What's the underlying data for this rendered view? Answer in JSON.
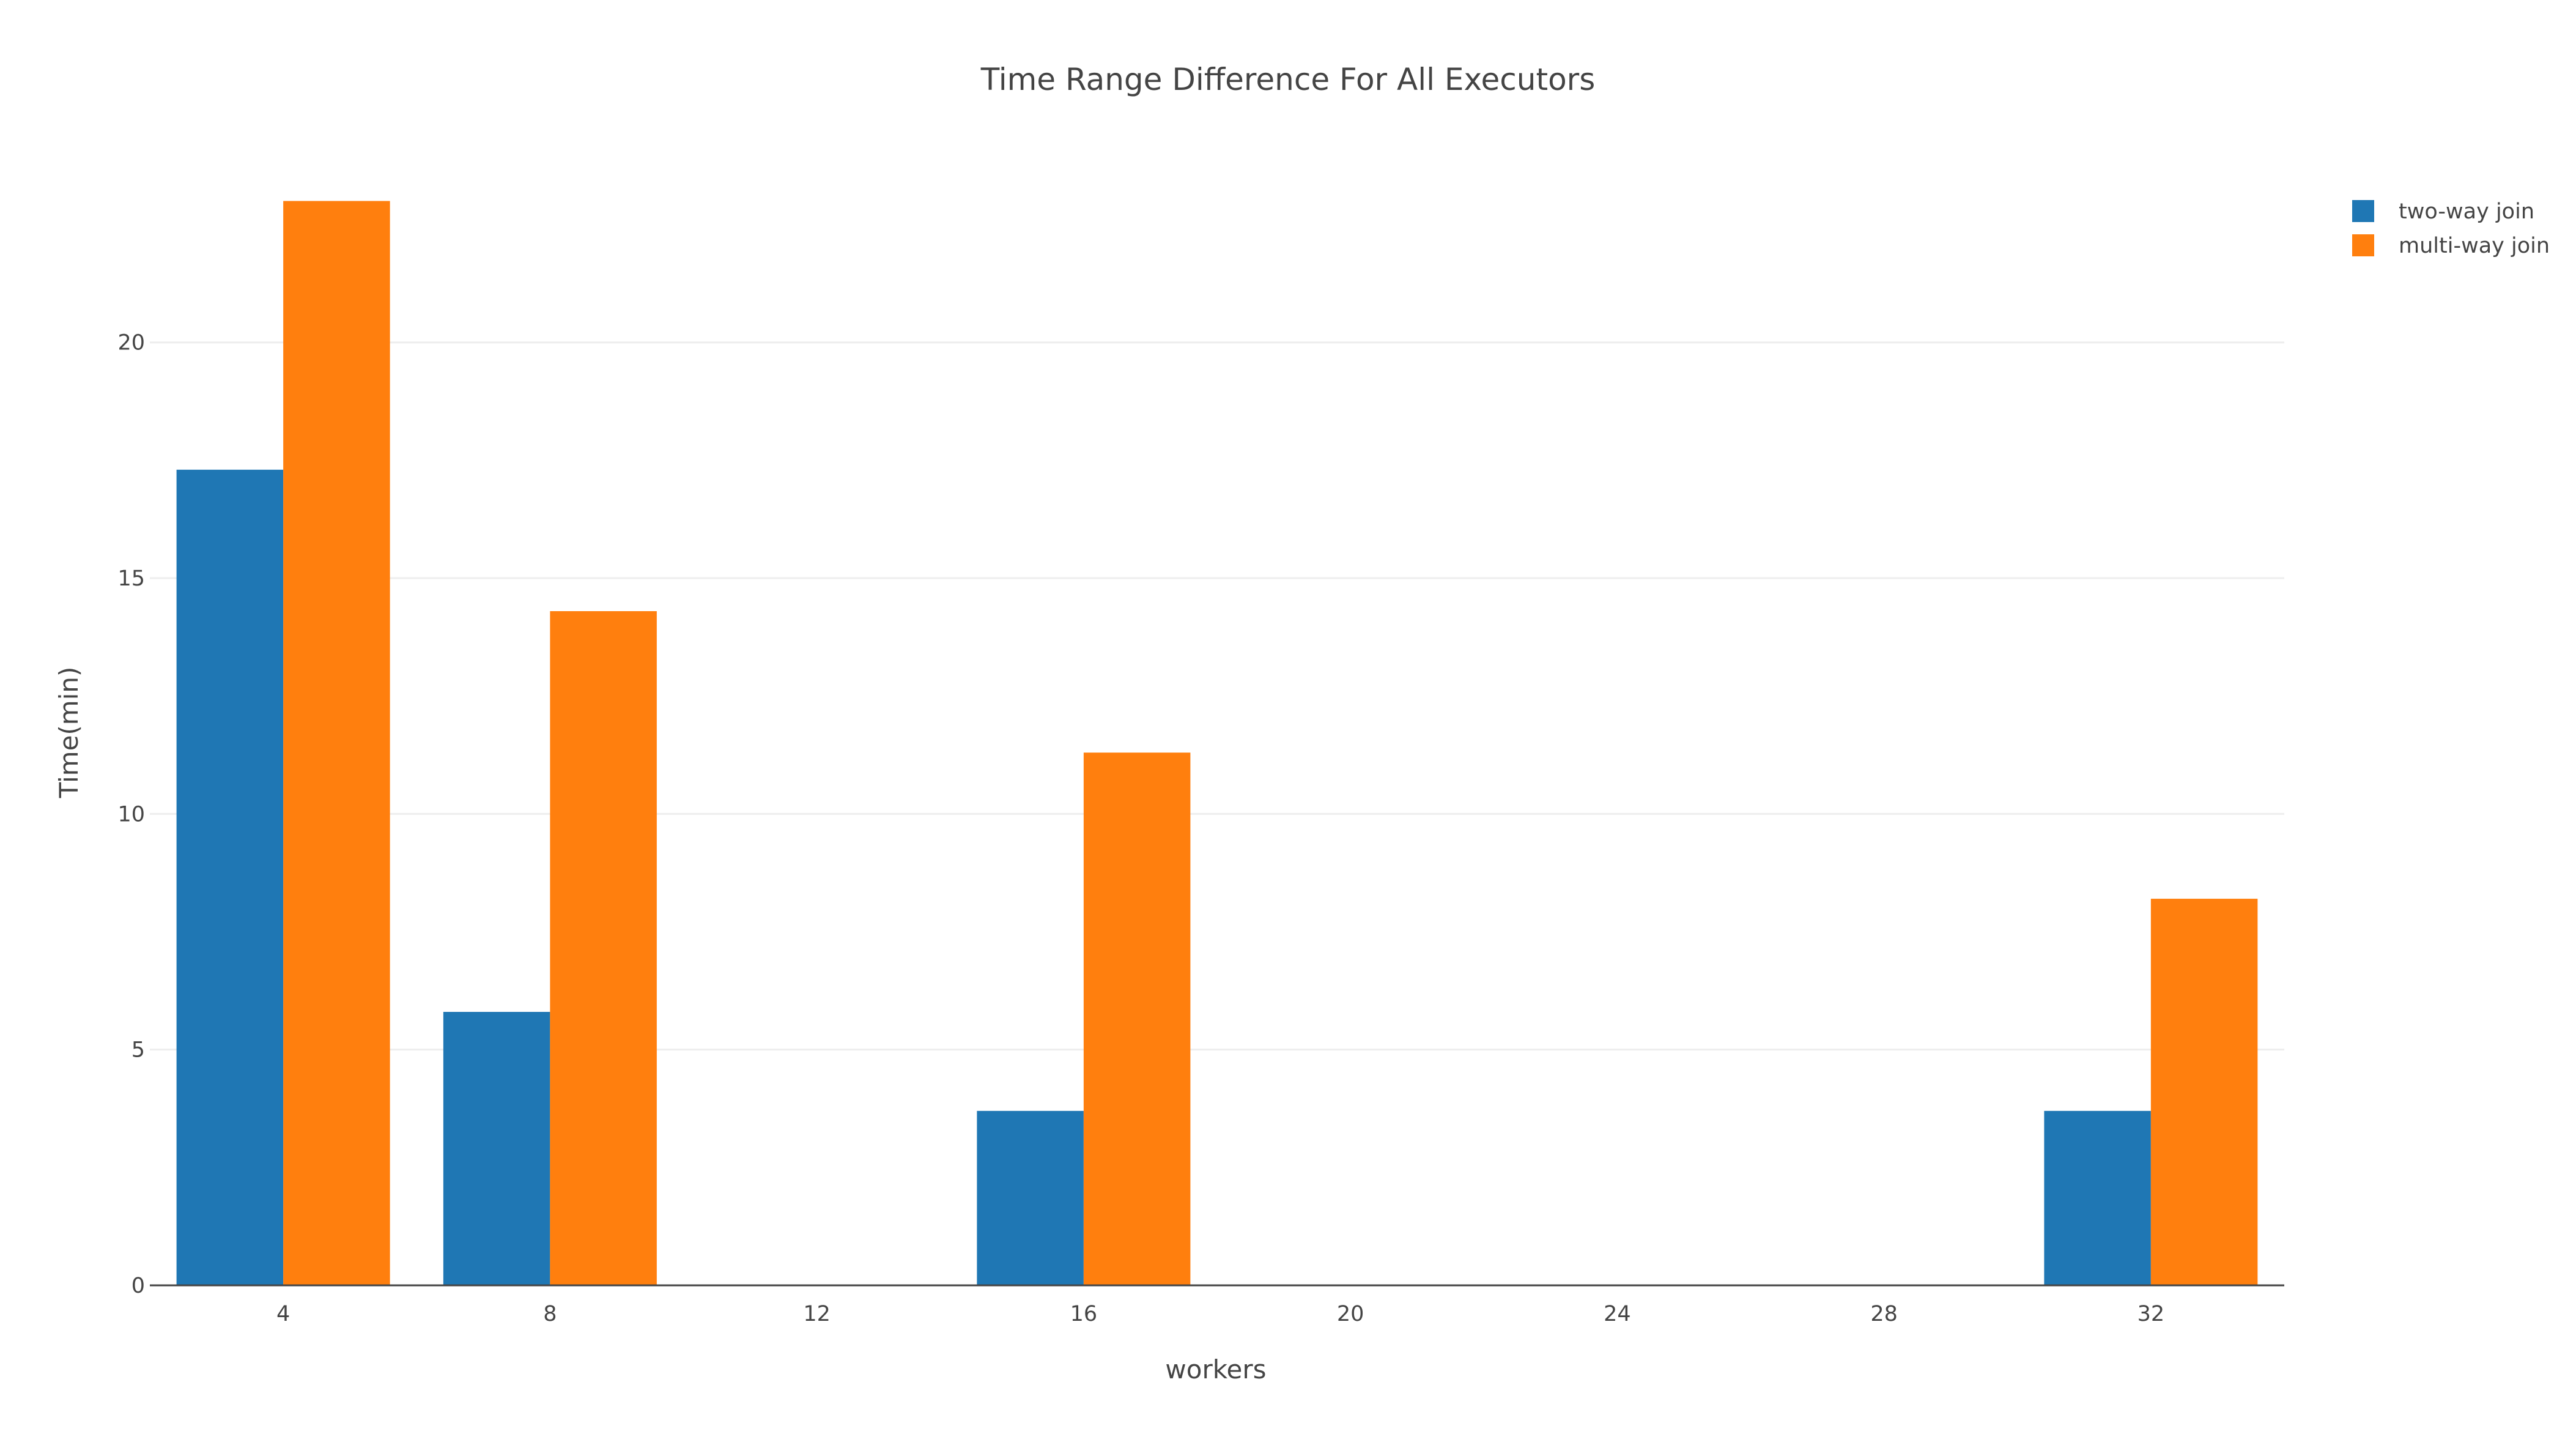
{
  "chart_data": {
    "type": "bar",
    "title": "Time Range Difference For All Executors",
    "xlabel": "workers",
    "ylabel": "Time(min)",
    "x_tick_values": [
      4,
      8,
      12,
      16,
      20,
      24,
      28,
      32
    ],
    "x_tick_labels": [
      "4",
      "8",
      "12",
      "16",
      "20",
      "24",
      "28",
      "32"
    ],
    "xlim": [
      2,
      34
    ],
    "y_tick_values": [
      0,
      5,
      10,
      15,
      20
    ],
    "y_tick_labels": [
      "0",
      "5",
      "10",
      "15",
      "20"
    ],
    "ylim": [
      0,
      23.5
    ],
    "grid": true,
    "legend_position": "top-right",
    "x": [
      4,
      8,
      16,
      32
    ],
    "series": [
      {
        "name": "two-way join",
        "color": "#1f77b4",
        "values": [
          17.3,
          5.8,
          3.7,
          3.7
        ]
      },
      {
        "name": "multi-way join",
        "color": "#ff7f0e",
        "values": [
          23.0,
          14.3,
          11.3,
          8.2
        ]
      }
    ]
  }
}
